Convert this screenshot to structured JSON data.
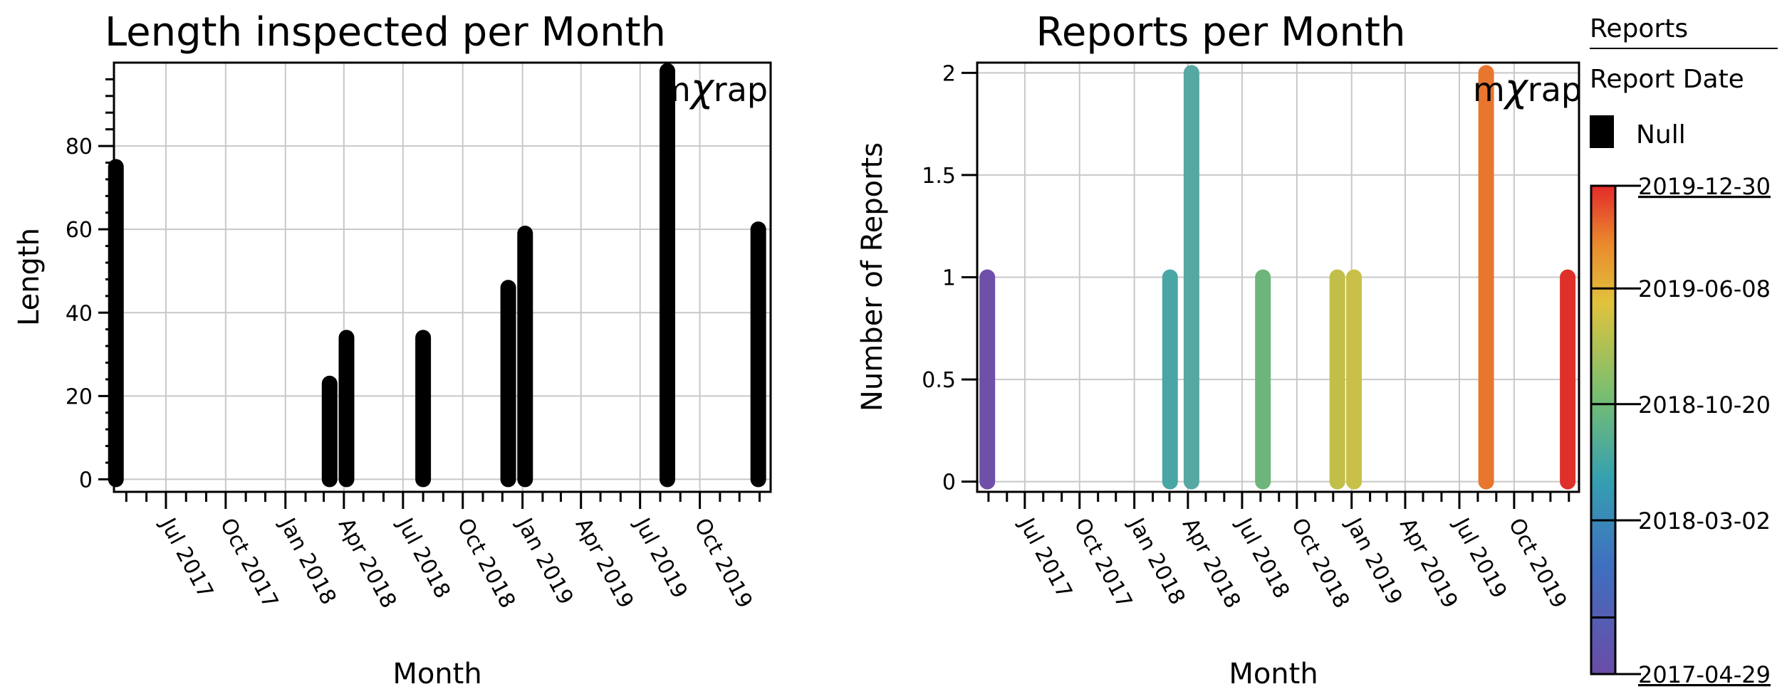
{
  "colors": {
    "null_bar": "#000000",
    "grid": "#c8c8c8",
    "frame": "#000000",
    "logo": "#2b2b6b"
  },
  "logo": {
    "text_m": "m",
    "text_chi": "χ",
    "text_rap": "rap"
  },
  "legend": {
    "title": "Reports",
    "subtitle": "Report Date",
    "null_label": "Null",
    "colorbar_ticks": [
      "2019-12-30",
      "2019-06-08",
      "2018-10-20",
      "2018-03-02",
      "2017-04-29"
    ]
  },
  "chart_data": [
    {
      "type": "bar",
      "title": "Length inspected per Month",
      "xlabel": "Month",
      "ylabel": "Length",
      "x_tick_labels": [
        "Jul 2017",
        "Oct 2017",
        "Jan 2018",
        "Apr 2018",
        "Jul 2018",
        "Oct 2018",
        "Jan 2019",
        "Apr 2019",
        "Jul 2019",
        "Oct 2019"
      ],
      "y_tick_labels": [
        "0",
        "20",
        "40",
        "60",
        "80"
      ],
      "ylim": [
        -3,
        100
      ],
      "grid": true,
      "color_encoding": "Null",
      "bars": [
        {
          "date": "2017-04-15",
          "value": 75
        },
        {
          "date": "2018-03-10",
          "value": 23
        },
        {
          "date": "2018-04-05",
          "value": 34
        },
        {
          "date": "2018-08-01",
          "value": 34
        },
        {
          "date": "2018-12-10",
          "value": 46
        },
        {
          "date": "2019-01-05",
          "value": 59
        },
        {
          "date": "2019-08-12",
          "value": 98
        },
        {
          "date": "2019-12-30",
          "value": 60
        }
      ]
    },
    {
      "type": "bar",
      "title": "Reports per Month",
      "xlabel": "Month",
      "ylabel": "Number of Reports",
      "x_tick_labels": [
        "Jul 2017",
        "Oct 2017",
        "Jan 2018",
        "Apr 2018",
        "Jul 2018",
        "Oct 2018",
        "Jan 2019",
        "Apr 2019",
        "Jul 2019",
        "Oct 2019"
      ],
      "y_tick_labels": [
        "0",
        "0.5",
        "1",
        "1.5",
        "2"
      ],
      "ylim": [
        -0.05,
        2.05
      ],
      "grid": true,
      "color_encoding": "Report Date",
      "bars": [
        {
          "date": "2017-04-29",
          "value": 1,
          "color": "#6f4fa8"
        },
        {
          "date": "2018-03-02",
          "value": 1,
          "color": "#4aa6a5"
        },
        {
          "date": "2018-04-07",
          "value": 2,
          "color": "#56a8a2"
        },
        {
          "date": "2018-08-05",
          "value": 1,
          "color": "#6db57b"
        },
        {
          "date": "2018-12-08",
          "value": 1,
          "color": "#c1bf4a"
        },
        {
          "date": "2019-01-05",
          "value": 1,
          "color": "#c9c04a"
        },
        {
          "date": "2019-08-15",
          "value": 2,
          "color": "#e8762e"
        },
        {
          "date": "2019-12-30",
          "value": 1,
          "color": "#e0302a"
        }
      ]
    }
  ]
}
